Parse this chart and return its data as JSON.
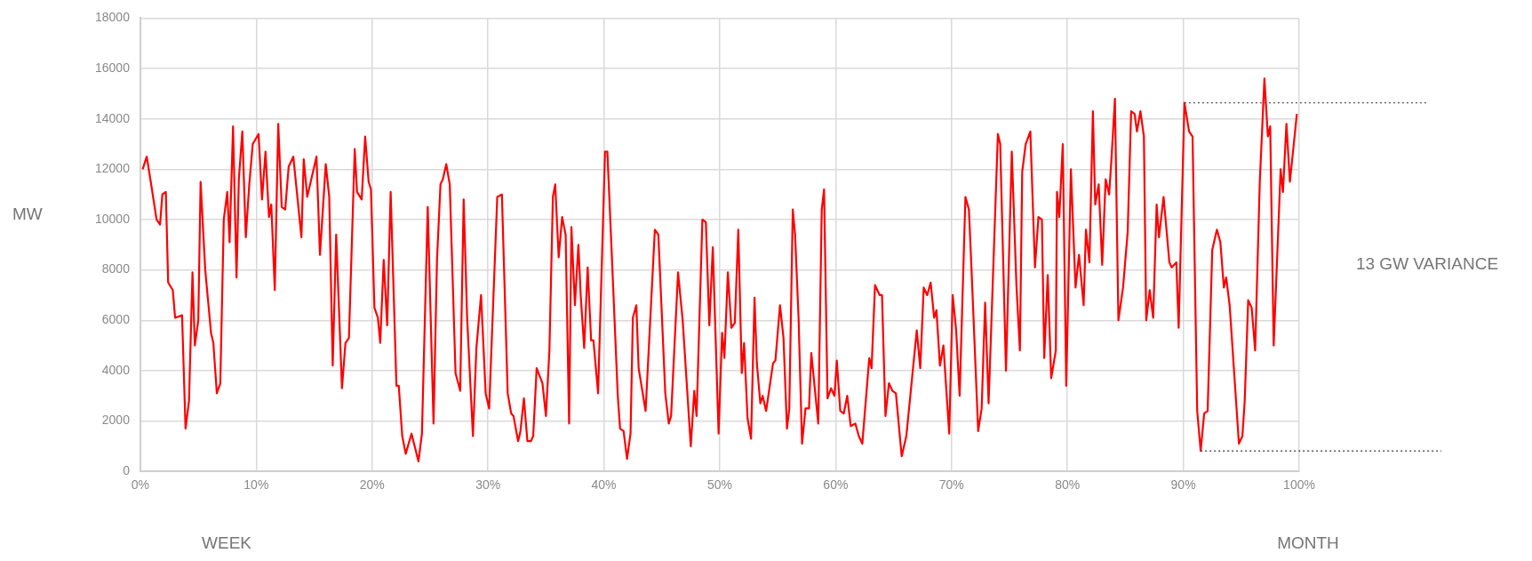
{
  "chart_data": {
    "type": "line",
    "ylabel": "MW",
    "annotations": [
      "WEEK",
      "MONTH",
      "13 GW VARIANCE"
    ],
    "xlim": [
      0,
      100
    ],
    "xticks": [
      {
        "value": 0,
        "label": "0%"
      },
      {
        "value": 10,
        "label": "10%"
      },
      {
        "value": 20,
        "label": "20%"
      },
      {
        "value": 30,
        "label": "30%"
      },
      {
        "value": 40,
        "label": "40%"
      },
      {
        "value": 50,
        "label": "50%"
      },
      {
        "value": 60,
        "label": "60%"
      },
      {
        "value": 70,
        "label": "70%"
      },
      {
        "value": 80,
        "label": "80%"
      },
      {
        "value": 90,
        "label": "90%"
      },
      {
        "value": 100,
        "label": "100%"
      }
    ],
    "ylim": [
      0,
      18000
    ],
    "yticks": [
      0,
      2000,
      4000,
      6000,
      8000,
      10000,
      12000,
      14000,
      16000,
      18000
    ],
    "grid": true,
    "legend": false,
    "marker": "none",
    "line_style": "solid",
    "ref_lines": [
      {
        "axis": "y",
        "value": 14640,
        "color": "#555555",
        "line_style": "dotted"
      },
      {
        "axis": "y",
        "value": 810,
        "color": "#555555",
        "line_style": "dotted"
      }
    ],
    "series": [
      {
        "color": "#ff0000",
        "x": [
          0.2,
          0.55,
          0.9,
          1.4,
          1.7,
          1.9,
          2.2,
          2.4,
          2.8,
          3.0,
          3.6,
          3.9,
          4.2,
          4.5,
          4.7,
          5.0,
          5.2,
          5.6,
          6.1,
          6.3,
          6.6,
          6.9,
          7.2,
          7.5,
          7.7,
          8.0,
          8.3,
          8.5,
          8.8,
          9.1,
          9.4,
          9.7,
          10.2,
          10.5,
          10.8,
          11.1,
          11.3,
          11.6,
          11.9,
          12.2,
          12.5,
          12.8,
          13.2,
          13.9,
          14.1,
          14.4,
          15.2,
          15.5,
          16.0,
          16.3,
          16.6,
          16.9,
          17.4,
          17.7,
          18.0,
          18.5,
          18.7,
          19.1,
          19.4,
          19.7,
          19.9,
          20.2,
          20.5,
          20.7,
          21.0,
          21.3,
          21.6,
          22.1,
          22.3,
          22.6,
          22.9,
          23.4,
          24.0,
          24.3,
          24.8,
          25.3,
          25.6,
          25.9,
          26.1,
          26.4,
          26.7,
          27.2,
          27.6,
          27.9,
          28.2,
          28.7,
          29.0,
          29.4,
          29.8,
          30.1,
          30.8,
          31.2,
          31.7,
          32.0,
          32.2,
          32.6,
          32.8,
          33.1,
          33.4,
          33.7,
          33.9,
          34.2,
          34.7,
          35.0,
          35.3,
          35.6,
          35.8,
          36.1,
          36.4,
          36.7,
          37.0,
          37.2,
          37.5,
          37.8,
          38.0,
          38.3,
          38.6,
          38.9,
          39.1,
          39.5,
          40.1,
          40.3,
          40.6,
          41.2,
          41.4,
          41.7,
          42.0,
          42.3,
          42.5,
          42.8,
          43.0,
          43.6,
          44.4,
          44.7,
          45.3,
          45.6,
          45.8,
          46.4,
          46.8,
          47.5,
          47.8,
          48.0,
          48.5,
          48.8,
          49.1,
          49.4,
          49.9,
          50.2,
          50.4,
          50.7,
          51.0,
          51.3,
          51.6,
          51.9,
          52.1,
          52.4,
          52.7,
          53.0,
          53.2,
          53.5,
          53.7,
          54.0,
          54.6,
          54.8,
          55.2,
          55.5,
          55.8,
          56.0,
          56.3,
          56.5,
          56.8,
          57.1,
          57.4,
          57.7,
          57.9,
          58.5,
          58.8,
          59.0,
          59.3,
          59.6,
          59.9,
          60.1,
          60.4,
          60.7,
          61.0,
          61.3,
          61.7,
          62.0,
          62.3,
          62.9,
          63.1,
          63.4,
          63.8,
          64.0,
          64.3,
          64.6,
          64.9,
          65.2,
          65.7,
          66.1,
          67.0,
          67.3,
          67.6,
          67.9,
          68.2,
          68.5,
          68.7,
          69.0,
          69.3,
          69.8,
          70.1,
          70.4,
          70.7,
          71.2,
          71.5,
          71.7,
          72.3,
          72.6,
          72.9,
          73.2,
          74.0,
          74.2,
          74.7,
          75.2,
          75.6,
          75.9,
          76.1,
          76.4,
          76.8,
          77.2,
          77.5,
          77.8,
          78.0,
          78.3,
          78.6,
          79.0,
          79.1,
          79.3,
          79.6,
          79.9,
          80.3,
          80.7,
          81.0,
          81.4,
          81.6,
          81.9,
          82.2,
          82.4,
          82.7,
          83.0,
          83.3,
          83.6,
          83.8,
          84.1,
          84.4,
          84.8,
          85.2,
          85.5,
          85.8,
          86.0,
          86.3,
          86.6,
          86.8,
          87.1,
          87.4,
          87.7,
          87.9,
          88.3,
          88.8,
          89.0,
          89.4,
          89.6,
          90.1,
          90.5,
          90.8,
          91.2,
          91.5,
          91.8,
          92.1,
          92.5,
          92.9,
          93.2,
          93.5,
          93.7,
          94.0,
          94.8,
          95.1,
          95.3,
          95.6,
          95.9,
          96.2,
          96.6,
          97.0,
          97.3,
          97.5,
          97.8,
          98.4,
          98.6,
          98.9,
          99.2,
          99.8
        ],
        "values": [
          12000,
          12500,
          11500,
          10000,
          9800,
          11000,
          11100,
          7500,
          7200,
          6100,
          6200,
          1700,
          2800,
          7900,
          5000,
          6000,
          11500,
          8000,
          5500,
          5100,
          3100,
          3500,
          10000,
          11100,
          9100,
          13700,
          7700,
          11600,
          13500,
          9300,
          11400,
          13000,
          13400,
          10800,
          12700,
          10100,
          10600,
          7200,
          13800,
          10500,
          10400,
          12100,
          12500,
          9300,
          12400,
          10900,
          12500,
          8600,
          12200,
          10900,
          4200,
          9400,
          3300,
          5100,
          5300,
          12800,
          11100,
          10800,
          13300,
          11500,
          11200,
          6500,
          6100,
          5100,
          8400,
          5800,
          11100,
          3400,
          3400,
          1400,
          700,
          1500,
          400,
          1500,
          10500,
          1900,
          8400,
          11400,
          11600,
          12200,
          11400,
          3900,
          3200,
          10800,
          6100,
          1400,
          4900,
          7000,
          3100,
          2500,
          10900,
          11000,
          3100,
          2300,
          2200,
          1200,
          1600,
          2900,
          1200,
          1200,
          1400,
          4100,
          3500,
          2200,
          4800,
          10900,
          11400,
          8500,
          10100,
          9400,
          1900,
          9700,
          6600,
          9000,
          7000,
          4900,
          8100,
          5200,
          5200,
          3100,
          12700,
          12700,
          9500,
          3000,
          1700,
          1600,
          500,
          1500,
          6100,
          6600,
          4100,
          2400,
          9600,
          9400,
          3100,
          1900,
          2200,
          7900,
          6000,
          1000,
          3200,
          2200,
          10000,
          9900,
          5800,
          8900,
          1500,
          5500,
          4500,
          7900,
          5700,
          5900,
          9600,
          3900,
          5100,
          2100,
          1300,
          6900,
          4300,
          2700,
          3000,
          2400,
          4300,
          4400,
          6600,
          5300,
          1700,
          2500,
          10400,
          9400,
          6100,
          1100,
          2500,
          2500,
          4700,
          1900,
          10400,
          11200,
          2900,
          3300,
          3000,
          4400,
          2400,
          2300,
          3000,
          1800,
          1900,
          1400,
          1100,
          4500,
          4100,
          7400,
          7000,
          7000,
          2200,
          3500,
          3200,
          3100,
          600,
          1400,
          5600,
          4100,
          7300,
          7000,
          7500,
          6100,
          6400,
          4200,
          5000,
          1500,
          7000,
          5600,
          3000,
          10900,
          10400,
          8300,
          1600,
          2500,
          6700,
          2700,
          13400,
          13000,
          4000,
          12700,
          7400,
          4800,
          11900,
          13000,
          13500,
          8100,
          10100,
          10000,
          4500,
          7800,
          3700,
          4800,
          11100,
          10100,
          13000,
          3400,
          12000,
          7300,
          8600,
          6600,
          9600,
          8300,
          14300,
          10600,
          11400,
          8200,
          11600,
          11000,
          12400,
          14800,
          6000,
          7300,
          9500,
          14300,
          14200,
          13500,
          14300,
          13300,
          6000,
          7200,
          6100,
          10600,
          9300,
          10900,
          8300,
          8100,
          8300,
          5700,
          14640,
          13500,
          13300,
          2400,
          810,
          2300,
          2400,
          8800,
          9600,
          9100,
          7300,
          7700,
          6600,
          1100,
          1400,
          2800,
          6800,
          6500,
          4800,
          11500,
          15600,
          13300,
          13700,
          5000,
          12000,
          11100,
          13800,
          11500,
          14200
        ]
      }
    ]
  }
}
